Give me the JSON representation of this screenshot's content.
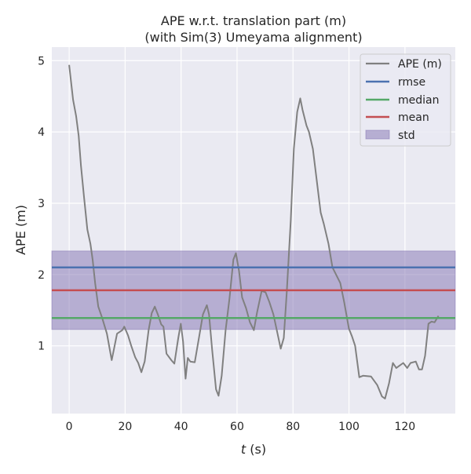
{
  "chart_data": {
    "type": "line",
    "title_line1": "APE w.r.t. translation part (m)",
    "title_line2": "(with Sim(3) Umeyama alignment)",
    "xlabel_var": "t",
    "xlabel_unit": " (s)",
    "ylabel": "APE (m)",
    "xlim": [
      -6.2,
      138
    ],
    "ylim": [
      0.05,
      5.19
    ],
    "xticks": [
      0,
      20,
      40,
      60,
      80,
      100,
      120
    ],
    "yticks": [
      1,
      2,
      3,
      4,
      5
    ],
    "grid": true,
    "legend_position": "top-right",
    "colors": {
      "ape": "#808080",
      "rmse": "#4c72b0",
      "median": "#55a868",
      "mean": "#c44e52",
      "std": "#8172b2",
      "background": "#eaeaf2"
    },
    "legend": [
      "APE (m)",
      "rmse",
      "median",
      "mean",
      "std"
    ],
    "stats": {
      "rmse": 2.1,
      "median": 1.39,
      "mean": 1.78,
      "std": 0.55
    },
    "series": [
      {
        "name": "APE (m)",
        "x": [
          0,
          1.4,
          2.5,
          3.4,
          4.2,
          5.3,
          6.5,
          7.6,
          8.4,
          9.3,
          10.4,
          11.8,
          13.5,
          15.2,
          16,
          17.1,
          19,
          19.7,
          21,
          22.2,
          23.6,
          24.7,
          25.8,
          27,
          28.4,
          29.5,
          30.6,
          31.7,
          32.9,
          33.7,
          34.8,
          36.5,
          37.6,
          39,
          39.9,
          40.7,
          41.6,
          42.4,
          43.3,
          44.9,
          46.3,
          47.8,
          49.2,
          50,
          51.1,
          52.5,
          53.4,
          54.5,
          55.9,
          57.3,
          58.7,
          59.6,
          60.7,
          61.8,
          63.2,
          64.6,
          66,
          67.1,
          68.8,
          70.2,
          71.6,
          73,
          74.2,
          75.6,
          76.7,
          77.8,
          79.2,
          80.3,
          81.5,
          82.6,
          83.4,
          84.8,
          85.7,
          87.1,
          88.5,
          89.9,
          91,
          92.7,
          94.1,
          95.5,
          96.9,
          98.3,
          100,
          101.1,
          102.2,
          103.7,
          105,
          107.9,
          110.1,
          111.8,
          112.9,
          114.3,
          115.7,
          116.9,
          119.4,
          120.8,
          122,
          123.9,
          125,
          126.1,
          127.2,
          128.4,
          129.5,
          130.6,
          132
        ],
        "y": [
          4.94,
          4.45,
          4.22,
          3.95,
          3.53,
          3.09,
          2.63,
          2.43,
          2.21,
          1.88,
          1.55,
          1.39,
          1.17,
          0.8,
          0.95,
          1.17,
          1.22,
          1.27,
          1.15,
          1.0,
          0.84,
          0.76,
          0.63,
          0.78,
          1.22,
          1.46,
          1.55,
          1.44,
          1.3,
          1.27,
          0.89,
          0.8,
          0.75,
          1.11,
          1.31,
          1.06,
          0.54,
          0.83,
          0.78,
          0.77,
          1.09,
          1.44,
          1.57,
          1.44,
          0.95,
          0.39,
          0.3,
          0.58,
          1.22,
          1.66,
          2.21,
          2.3,
          2.05,
          1.68,
          1.53,
          1.33,
          1.22,
          1.46,
          1.77,
          1.75,
          1.61,
          1.44,
          1.22,
          0.96,
          1.11,
          1.77,
          2.76,
          3.76,
          4.28,
          4.47,
          4.31,
          4.09,
          4.0,
          3.76,
          3.31,
          2.87,
          2.71,
          2.43,
          2.1,
          1.99,
          1.88,
          1.61,
          1.24,
          1.13,
          1.0,
          0.56,
          0.58,
          0.57,
          0.45,
          0.29,
          0.26,
          0.47,
          0.76,
          0.69,
          0.76,
          0.69,
          0.76,
          0.78,
          0.67,
          0.67,
          0.86,
          1.31,
          1.34,
          1.33,
          1.42
        ]
      }
    ]
  }
}
